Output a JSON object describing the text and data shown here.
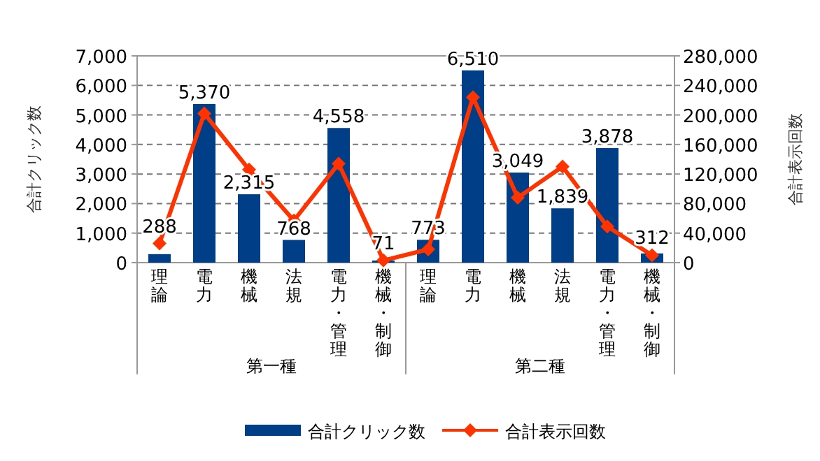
{
  "chart_data": {
    "type": "bar",
    "ylabel": "合計クリック数",
    "y2label": "合計表示回数",
    "categories": [
      "理論",
      "電力",
      "機械",
      "法規",
      "電力・管理",
      "機械・制御",
      "理論",
      "電力",
      "機械",
      "法規",
      "電力・管理",
      "機械・制御"
    ],
    "annotations": [
      "第一種",
      "第二種"
    ],
    "series": [
      {
        "name": "合計クリック数",
        "color": "#003f87",
        "values": [
          288,
          5370,
          2315,
          768,
          4558,
          71,
          773,
          6510,
          3049,
          1839,
          3878,
          312
        ],
        "value_labels": [
          "288",
          "5,370",
          "2,315",
          "768",
          "4,558",
          "71",
          "773",
          "6,510",
          "3,049",
          "1,839",
          "3,878",
          "312"
        ]
      },
      {
        "name": "合計表示回数",
        "type": "line",
        "axis": "y2",
        "color": "#ff3300",
        "marker": "diamond",
        "values": [
          26000,
          202000,
          126000,
          57000,
          134000,
          3000,
          18000,
          224000,
          88000,
          130000,
          49000,
          10000
        ]
      }
    ],
    "ylim": [
      0,
      7000
    ],
    "yticks": [
      0,
      {
        "value": 1000,
        "label": "1,000"
      },
      {
        "value": 2000,
        "label": "2,000"
      },
      {
        "value": 3000,
        "label": "3,000"
      },
      {
        "value": 4000,
        "label": "4,000"
      },
      {
        "value": 5000,
        "label": "5,000"
      },
      {
        "value": 6000,
        "label": "6,000"
      },
      {
        "value": 7000,
        "label": "7,000"
      }
    ],
    "y2lim": [
      0,
      280000
    ],
    "y2ticks": [
      0,
      {
        "value": 40000,
        "label": "40,000"
      },
      {
        "value": 80000,
        "label": "80,000"
      },
      {
        "value": 120000,
        "label": "120,000"
      },
      {
        "value": 160000,
        "label": "160,000"
      },
      {
        "value": 200000,
        "label": "200,000"
      },
      {
        "value": 240000,
        "label": "240,000"
      },
      {
        "value": 280000,
        "label": "280,000"
      }
    ],
    "grid": "y",
    "legend": "bottom"
  }
}
